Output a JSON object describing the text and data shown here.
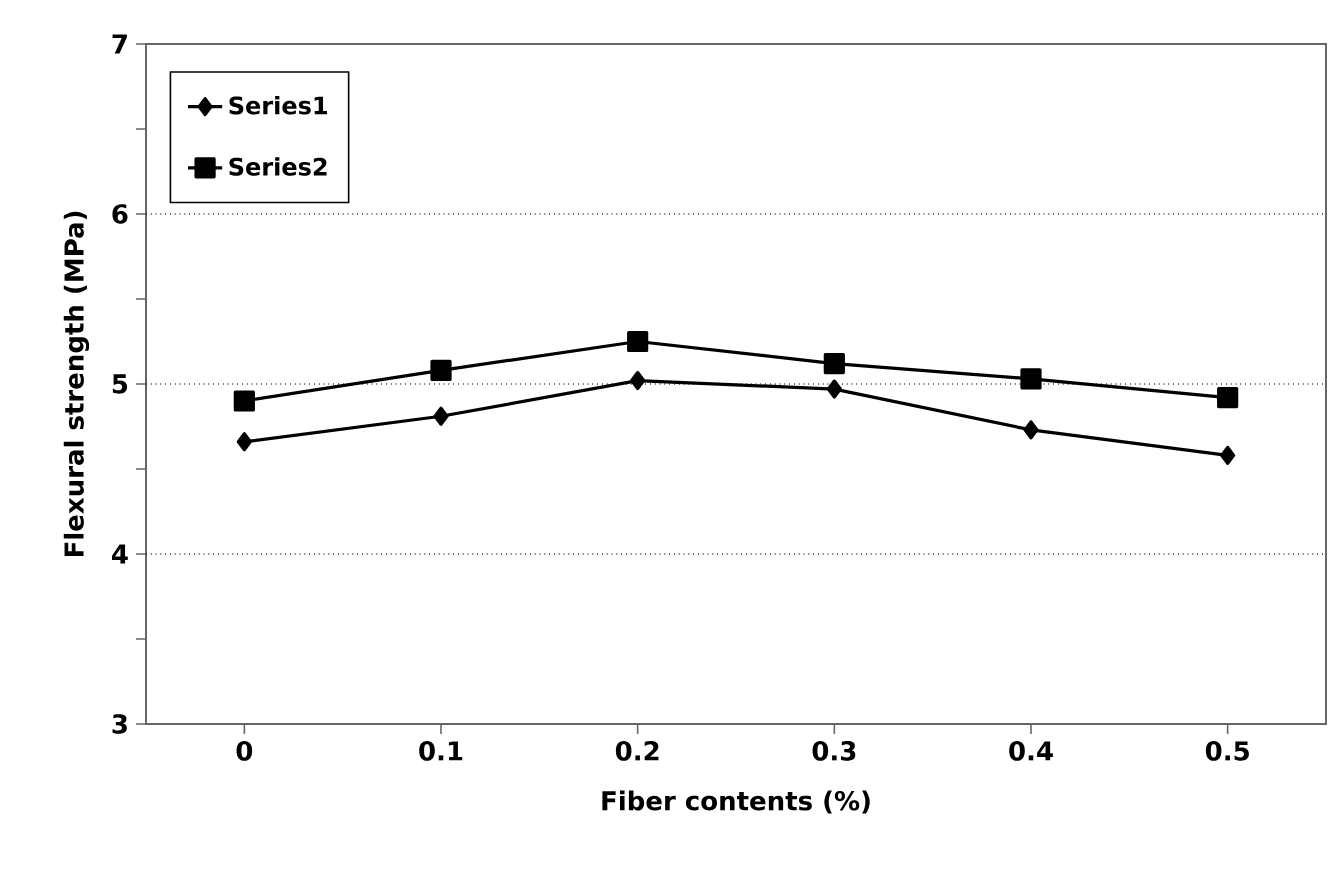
{
  "chart_data": {
    "type": "line",
    "xlabel": "Fiber contents (%)",
    "ylabel": "Flexural strength  (MPa)",
    "categories": [
      "0",
      "0.1",
      "0.2",
      "0.3",
      "0.4",
      "0.5"
    ],
    "series": [
      {
        "name": "Series1",
        "color": "#000000",
        "marker": "diamond",
        "values": [
          4.66,
          4.81,
          5.02,
          4.97,
          4.73,
          4.58
        ]
      },
      {
        "name": "Series2",
        "color": "#000000",
        "marker": "square",
        "values": [
          4.9,
          5.08,
          5.25,
          5.12,
          5.03,
          4.92
        ]
      }
    ],
    "ylim": [
      3,
      7
    ],
    "yticks": [
      3,
      {
        "value": 3.5,
        "label": null
      },
      4,
      {
        "value": 4.5,
        "label": null
      },
      5,
      {
        "value": 5.5,
        "label": null
      },
      6,
      {
        "value": 6.5,
        "label": null
      },
      7
    ],
    "grid": "y",
    "legend": "top left",
    "line_style": "solid"
  }
}
